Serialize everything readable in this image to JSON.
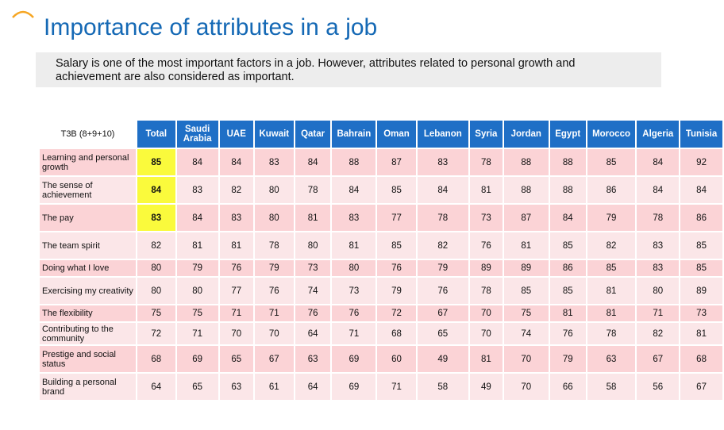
{
  "title": "Importance of attributes in a job",
  "subtitle": "Salary is one of the most important factors in a job. However, attributes related to personal growth and achievement are also considered as important.",
  "colors": {
    "title": "#1569b5",
    "header_bg": "#1f6fc6",
    "row_pink": "#fbd3d6",
    "row_light": "#fbe6e8",
    "highlight": "#fafa3c",
    "caret": "#f6a623"
  },
  "icons": {
    "caret": "chevron-up-icon"
  },
  "table": {
    "corner_label": "T3B (8+9+10)",
    "columns": [
      "Total",
      "Saudi Arabia",
      "UAE",
      "Kuwait",
      "Qatar",
      "Bahrain",
      "Oman",
      "Lebanon",
      "Syria",
      "Jordan",
      "Egypt",
      "Morocco",
      "Algeria",
      "Tunisia"
    ],
    "rows": [
      {
        "label": "Learning and personal growth",
        "values": [
          "85",
          "84",
          "84",
          "83",
          "84",
          "88",
          "87",
          "83",
          "78",
          "88",
          "88",
          "85",
          "84",
          "92"
        ]
      },
      {
        "label": "The sense of achievement",
        "values": [
          "84",
          "83",
          "82",
          "80",
          "78",
          "84",
          "85",
          "84",
          "81",
          "88",
          "88",
          "86",
          "84",
          "84"
        ]
      },
      {
        "label": "The pay",
        "values": [
          "83",
          "84",
          "83",
          "80",
          "81",
          "83",
          "77",
          "78",
          "73",
          "87",
          "84",
          "79",
          "78",
          "86"
        ]
      },
      {
        "label": "The team spirit",
        "values": [
          "82",
          "81",
          "81",
          "78",
          "80",
          "81",
          "85",
          "82",
          "76",
          "81",
          "85",
          "82",
          "83",
          "85"
        ]
      },
      {
        "label": "Doing what I love",
        "values": [
          "80",
          "79",
          "76",
          "79",
          "73",
          "80",
          "76",
          "79",
          "89",
          "89",
          "86",
          "85",
          "83",
          "85"
        ]
      },
      {
        "label": "Exercising my creativity",
        "values": [
          "80",
          "80",
          "77",
          "76",
          "74",
          "73",
          "79",
          "76",
          "78",
          "85",
          "85",
          "81",
          "80",
          "89"
        ]
      },
      {
        "label": "The flexibility",
        "values": [
          "75",
          "75",
          "71",
          "71",
          "76",
          "76",
          "72",
          "67",
          "70",
          "75",
          "81",
          "81",
          "71",
          "73"
        ]
      },
      {
        "label": "Contributing to the community",
        "values": [
          "72",
          "71",
          "70",
          "70",
          "64",
          "71",
          "68",
          "65",
          "70",
          "74",
          "76",
          "78",
          "82",
          "81"
        ]
      },
      {
        "label": "Prestige and social status",
        "values": [
          "68",
          "69",
          "65",
          "67",
          "63",
          "69",
          "60",
          "49",
          "81",
          "70",
          "79",
          "63",
          "67",
          "68"
        ]
      },
      {
        "label": "Building a personal brand",
        "values": [
          "64",
          "65",
          "63",
          "61",
          "64",
          "69",
          "71",
          "58",
          "49",
          "70",
          "66",
          "58",
          "56",
          "67"
        ]
      }
    ]
  }
}
